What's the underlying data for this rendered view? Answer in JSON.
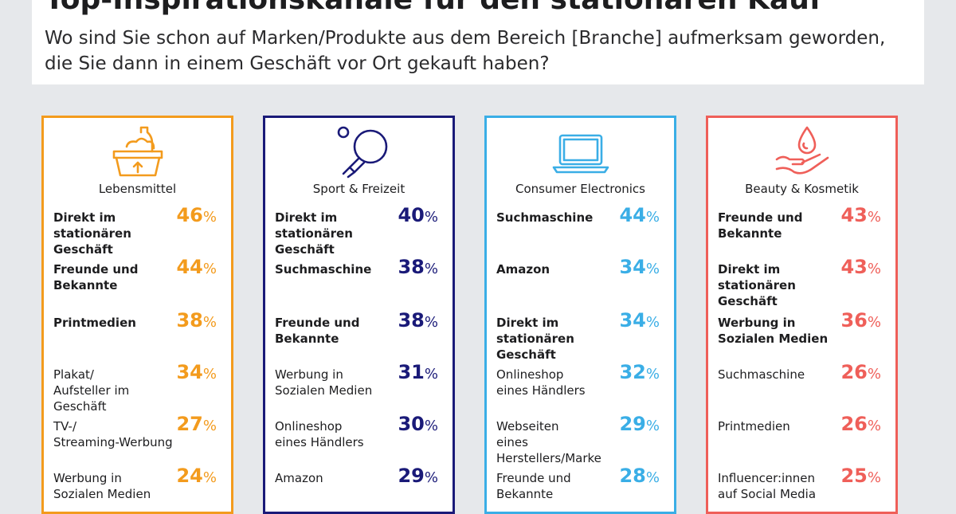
{
  "title": "Top-Inspirationskanäle für den stationären Kauf",
  "subtitle": "Wo sind Sie schon auf Marken/Produkte aus dem Bereich [Branche] aufmerksam geworden, die Sie dann in einem Geschäft vor Ort gekauft haben?",
  "percent_sign": "%",
  "chart_data": [
    {
      "type": "table",
      "category": "Lebensmittel",
      "icon": "basket-icon",
      "color": "#f39b1d",
      "rows": [
        {
          "label": "Direkt im\nstationären Geschäft",
          "value": 46,
          "bold": true
        },
        {
          "label": "Freunde und\nBekannte",
          "value": 44,
          "bold": true
        },
        {
          "label": "Printmedien",
          "value": 38,
          "bold": true
        },
        {
          "label": "Plakat/\nAufsteller im Geschäft",
          "value": 34,
          "bold": false
        },
        {
          "label": "TV-/\nStreaming-Werbung",
          "value": 27,
          "bold": false
        },
        {
          "label": "Werbung in\nSozialen Medien",
          "value": 24,
          "bold": false
        }
      ]
    },
    {
      "type": "table",
      "category": "Sport & Freizeit",
      "icon": "ping-pong-icon",
      "color": "#1a1a78",
      "rows": [
        {
          "label": "Direkt im\nstationären Geschäft",
          "value": 40,
          "bold": true
        },
        {
          "label": "Suchmaschine",
          "value": 38,
          "bold": true
        },
        {
          "label": "Freunde und\nBekannte",
          "value": 38,
          "bold": true
        },
        {
          "label": "Werbung in\nSozialen Medien",
          "value": 31,
          "bold": false
        },
        {
          "label": "Onlineshop\neines Händlers",
          "value": 30,
          "bold": false
        },
        {
          "label": "Amazon",
          "value": 29,
          "bold": false
        }
      ]
    },
    {
      "type": "table",
      "category": "Consumer Electronics",
      "icon": "laptop-icon",
      "color": "#3aaee6",
      "rows": [
        {
          "label": "Suchmaschine",
          "value": 44,
          "bold": true
        },
        {
          "label": "Amazon",
          "value": 34,
          "bold": true
        },
        {
          "label": "Direkt im\nstationären Geschäft",
          "value": 34,
          "bold": true
        },
        {
          "label": "Onlineshop\neines Händlers",
          "value": 32,
          "bold": false
        },
        {
          "label": "Webseiten\neines Herstellers/Marke",
          "value": 29,
          "bold": false
        },
        {
          "label": "Freunde und\nBekannte",
          "value": 28,
          "bold": false
        }
      ]
    },
    {
      "type": "table",
      "category": "Beauty & Kosmetik",
      "icon": "hand-drop-icon",
      "color": "#ef5f59",
      "rows": [
        {
          "label": "Freunde und\nBekannte",
          "value": 43,
          "bold": true
        },
        {
          "label": "Direkt im\nstationären Geschäft",
          "value": 43,
          "bold": true
        },
        {
          "label": "Werbung in\nSozialen Medien",
          "value": 36,
          "bold": true
        },
        {
          "label": "Suchmaschine",
          "value": 26,
          "bold": false
        },
        {
          "label": "Printmedien",
          "value": 26,
          "bold": false
        },
        {
          "label": "Influencer:innen\nauf Social Media",
          "value": 25,
          "bold": false
        }
      ]
    }
  ]
}
